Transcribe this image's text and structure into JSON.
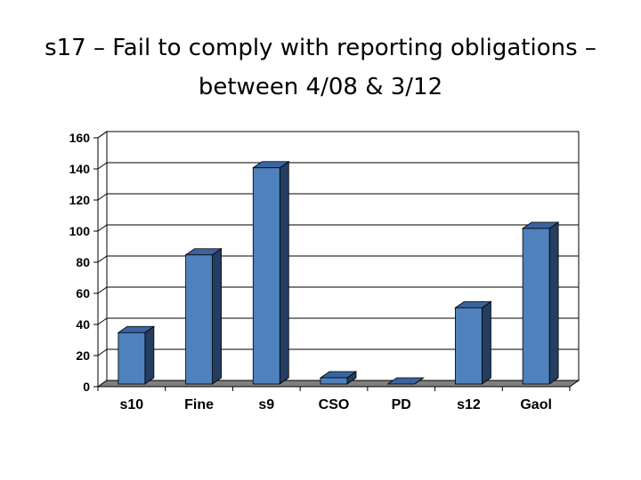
{
  "slide": {
    "title_line1": "s17 – Fail to comply with reporting obligations –",
    "title_line2": "between 4/08 & 3/12"
  },
  "chart_data": {
    "type": "bar",
    "style": "3d",
    "categories": [
      "s10",
      "Fine",
      "s9",
      "CSO",
      "PD",
      "s12",
      "Gaol"
    ],
    "values": [
      33,
      83,
      139,
      4,
      0,
      49,
      100
    ],
    "ylim": [
      0,
      160
    ],
    "yticks": [
      0,
      20,
      40,
      60,
      80,
      100,
      120,
      140,
      160
    ],
    "grid": true,
    "legend": "none",
    "colors": {
      "bar_front": "#4F81BD",
      "bar_side": "#233E60",
      "bar_top": "#3A64A0",
      "floor": "#7F7F7F",
      "wall": "#FFFFFF"
    }
  }
}
